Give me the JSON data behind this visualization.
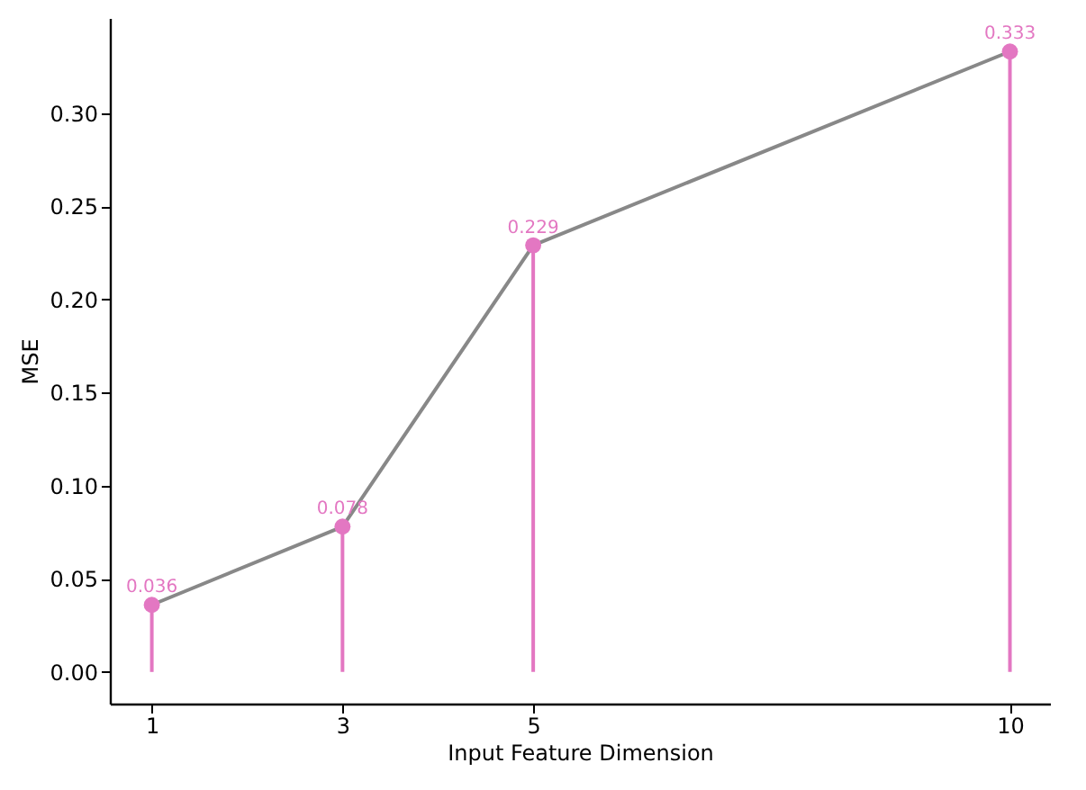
{
  "chart_data": {
    "type": "lollipop",
    "xlabel": "Input Feature Dimension",
    "ylabel": "MSE",
    "x": [
      1,
      3,
      5,
      10
    ],
    "series": [
      {
        "type": "line",
        "color": "#888888",
        "values": [
          0.036,
          0.078,
          0.229,
          0.333
        ]
      },
      {
        "color": "#e377c2",
        "values": [
          0.036,
          0.078,
          0.229,
          0.333
        ],
        "marker": "circle",
        "data_labels": true
      }
    ],
    "xlim": [
      0.56,
      10.42
    ],
    "xticks": [
      1,
      3,
      5,
      10
    ],
    "ylim": [
      -0.017,
      0.351
    ],
    "yticks": [
      {
        "value": 0,
        "label": "0.00"
      },
      0.05,
      {
        "value": 0.1,
        "label": "0.10"
      },
      0.15,
      {
        "value": 0.2,
        "label": "0.20"
      },
      0.25,
      {
        "value": 0.3,
        "label": "0.30"
      }
    ],
    "grid": false
  }
}
